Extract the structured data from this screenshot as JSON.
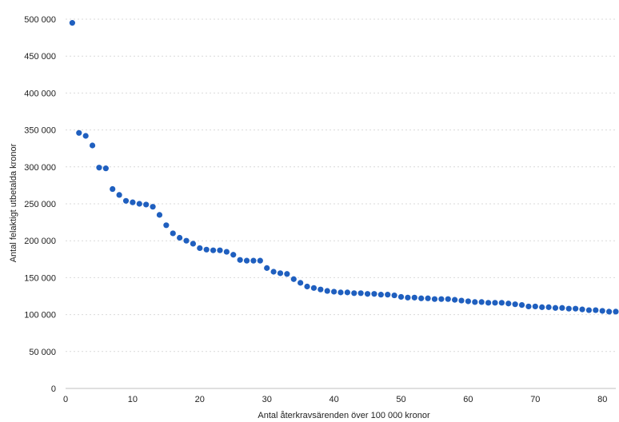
{
  "chart_data": {
    "type": "scatter",
    "title": "",
    "xlabel": "Antal återkravsärenden över 100 000 kronor",
    "ylabel": "Antal felaktigt utbetalda kronor",
    "xlim": [
      0,
      82
    ],
    "ylim": [
      0,
      500000
    ],
    "grid": true,
    "legend": "none",
    "marker_color": "#1f5fbf",
    "x_ticks": [
      {
        "value": 0,
        "label": "0"
      },
      {
        "value": 10,
        "label": "10"
      },
      {
        "value": 20,
        "label": "20"
      },
      {
        "value": 30,
        "label": "30"
      },
      {
        "value": 40,
        "label": "40"
      },
      {
        "value": 50,
        "label": "50"
      },
      {
        "value": 60,
        "label": "60"
      },
      {
        "value": 70,
        "label": "70"
      },
      {
        "value": 80,
        "label": "80"
      }
    ],
    "y_ticks": [
      {
        "value": 0,
        "label": "0"
      },
      {
        "value": 50000,
        "label": "50 000"
      },
      {
        "value": 100000,
        "label": "100 000"
      },
      {
        "value": 150000,
        "label": "150 000"
      },
      {
        "value": 200000,
        "label": "200 000"
      },
      {
        "value": 250000,
        "label": "250 000"
      },
      {
        "value": 300000,
        "label": "300 000"
      },
      {
        "value": 350000,
        "label": "350 000"
      },
      {
        "value": 400000,
        "label": "400 000"
      },
      {
        "value": 450000,
        "label": "450 000"
      },
      {
        "value": 500000,
        "label": "500 000"
      }
    ],
    "x": [
      1,
      2,
      3,
      4,
      5,
      6,
      7,
      8,
      9,
      10,
      11,
      12,
      13,
      14,
      15,
      16,
      17,
      18,
      19,
      20,
      21,
      22,
      23,
      24,
      25,
      26,
      27,
      28,
      29,
      30,
      31,
      32,
      33,
      34,
      35,
      36,
      37,
      38,
      39,
      40,
      41,
      42,
      43,
      44,
      45,
      46,
      47,
      48,
      49,
      50,
      51,
      52,
      53,
      54,
      55,
      56,
      57,
      58,
      59,
      60,
      61,
      62,
      63,
      64,
      65,
      66,
      67,
      68,
      69,
      70,
      71,
      72,
      73,
      74,
      75,
      76,
      77,
      78,
      79,
      80,
      81,
      82
    ],
    "y": [
      495000,
      346000,
      342000,
      329000,
      299000,
      298000,
      270000,
      262000,
      254000,
      252000,
      250000,
      249000,
      246000,
      235000,
      221000,
      210000,
      204000,
      200000,
      196000,
      190000,
      188000,
      187000,
      187000,
      185000,
      181000,
      174000,
      173000,
      173000,
      173000,
      163000,
      158000,
      156000,
      155000,
      148000,
      143000,
      138000,
      136000,
      134000,
      132000,
      131000,
      130000,
      130000,
      129000,
      129000,
      128000,
      128000,
      127000,
      127000,
      126000,
      124000,
      123000,
      123000,
      122000,
      122000,
      121000,
      121000,
      121000,
      120000,
      119000,
      118000,
      117000,
      117000,
      116000,
      116000,
      116000,
      115000,
      114000,
      113000,
      111000,
      111000,
      110000,
      110000,
      109000,
      109000,
      108000,
      108000,
      107000,
      106000,
      106000,
      105000,
      104000,
      104000
    ]
  }
}
